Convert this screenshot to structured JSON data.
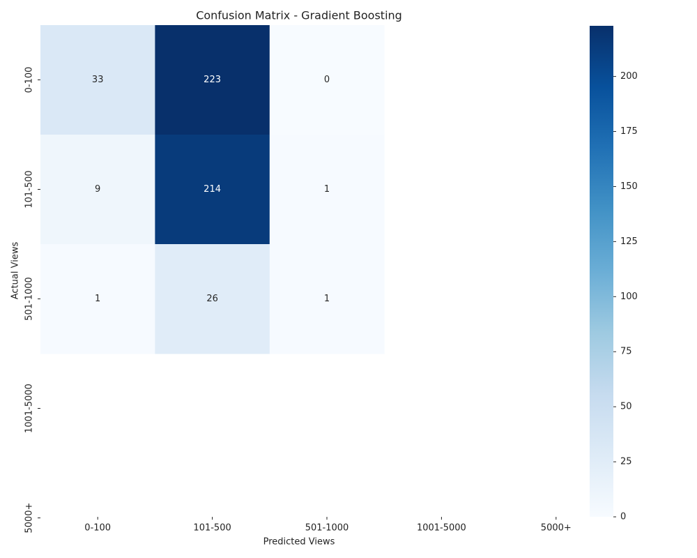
{
  "chart_data": {
    "type": "heatmap",
    "title": "Confusion Matrix - Gradient Boosting",
    "x_label": "Predicted Views",
    "y_label": "Actual Views",
    "x_categories": [
      "0-100",
      "101-500",
      "501-1000",
      "1001-5000",
      "5000+"
    ],
    "y_categories": [
      "0-100",
      "101-500",
      "501-1000",
      "1001-5000",
      "5000+"
    ],
    "z": [
      [
        33,
        223,
        0,
        null,
        null
      ],
      [
        9,
        214,
        1,
        null,
        null
      ],
      [
        1,
        26,
        1,
        null,
        null
      ],
      [
        null,
        null,
        null,
        null,
        null
      ],
      [
        null,
        null,
        null,
        null,
        null
      ]
    ],
    "colormap": "Blues",
    "zlim": [
      0,
      223
    ],
    "colorbar_ticks": [
      0,
      25,
      50,
      75,
      100,
      125,
      150,
      175,
      200
    ]
  }
}
